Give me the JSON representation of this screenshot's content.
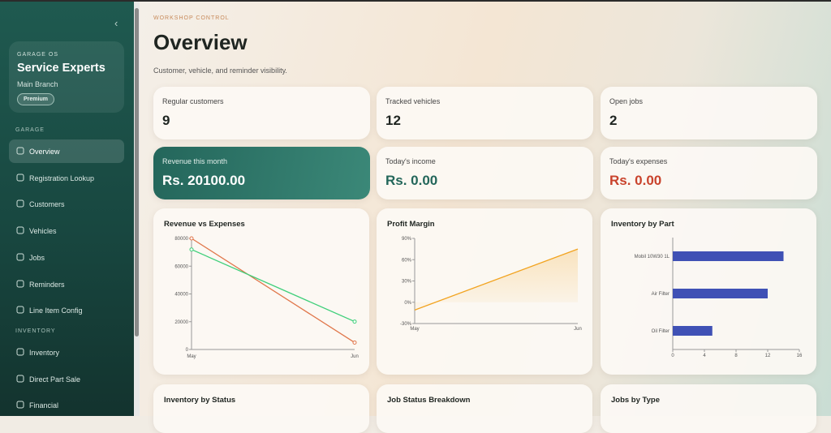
{
  "sidebar": {
    "brand_label": "GARAGE OS",
    "name": "Service Experts",
    "branch": "Main Branch",
    "badge": "Premium",
    "sections": [
      {
        "title": "GARAGE",
        "items": [
          "Overview",
          "Registration Lookup",
          "Customers",
          "Vehicles",
          "Jobs",
          "Reminders",
          "Line Item Config"
        ]
      },
      {
        "title": "INVENTORY",
        "items": [
          "Inventory",
          "Direct Part Sale",
          "Financial"
        ]
      }
    ]
  },
  "header": {
    "eyebrow": "WORKSHOP CONTROL",
    "title": "Overview",
    "subtitle": "Customer, vehicle, and reminder visibility."
  },
  "stats": [
    {
      "label": "Regular customers",
      "value": "9"
    },
    {
      "label": "Tracked vehicles",
      "value": "12"
    },
    {
      "label": "Open jobs",
      "value": "2"
    },
    {
      "label": "Revenue this month",
      "value": "Rs. 20100.00"
    },
    {
      "label": "Today's income",
      "value": "Rs. 0.00"
    },
    {
      "label": "Today's expenses",
      "value": "Rs. 0.00"
    }
  ],
  "chart_data": [
    {
      "type": "line",
      "title": "Revenue vs Expenses",
      "categories": [
        "May",
        "Jun"
      ],
      "series": [
        {
          "color": "#e0764a",
          "values": [
            80000,
            5000
          ]
        },
        {
          "color": "#3fcf7a",
          "values": [
            72000,
            20100
          ]
        }
      ],
      "ylim": [
        0,
        80000
      ],
      "yticks": [
        0,
        20000,
        40000,
        60000,
        80000
      ]
    },
    {
      "type": "area",
      "title": "Profit Margin",
      "categories": [
        "May",
        "Jun"
      ],
      "color": "#f2a31f",
      "values": [
        -11,
        75
      ],
      "ylim": [
        -30,
        90
      ],
      "yticks": [
        {
          "value": -30,
          "label": "-30%"
        },
        {
          "value": 0,
          "label": "0%"
        },
        {
          "value": 30,
          "label": "30%"
        },
        {
          "value": 60,
          "label": "60%"
        },
        {
          "value": 90,
          "label": "90%"
        }
      ]
    },
    {
      "type": "barh",
      "title": "Inventory by Part",
      "categories": [
        "Mobil 10W30 1L",
        "Air Filter",
        "Oil Filter"
      ],
      "values": [
        14,
        12,
        5
      ],
      "color": "#3f51b5",
      "xlim": [
        0,
        16
      ],
      "xticks": [
        0,
        4,
        8,
        12,
        16
      ]
    }
  ],
  "panels": [
    "Inventory by Status",
    "Job Status Breakdown",
    "Jobs by Type"
  ]
}
